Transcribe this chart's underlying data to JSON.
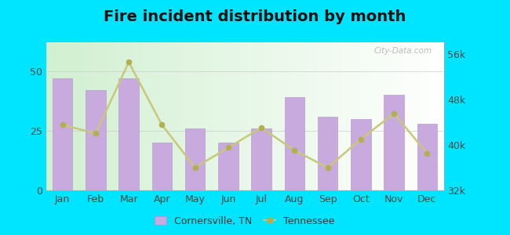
{
  "title": "Fire incident distribution by month",
  "months": [
    "Jan",
    "Feb",
    "Mar",
    "Apr",
    "May",
    "Jun",
    "Jul",
    "Aug",
    "Sep",
    "Oct",
    "Nov",
    "Dec"
  ],
  "bar_values": [
    47,
    42,
    47,
    20,
    26,
    20,
    26,
    39,
    31,
    30,
    40,
    28
  ],
  "line_values": [
    43500,
    42000,
    54500,
    43500,
    36000,
    39500,
    43000,
    39000,
    36000,
    41000,
    45500,
    38500
  ],
  "bar_color": "#c8aade",
  "bar_edge_color": "#b090cc",
  "line_color": "#c8c87a",
  "line_marker_color": "#b0b050",
  "ylim_left": [
    0,
    62
  ],
  "ylim_right": [
    32000,
    58000
  ],
  "yticks_left": [
    0,
    25,
    50
  ],
  "yticks_right": [
    32000,
    40000,
    48000,
    56000
  ],
  "ytick_labels_right": [
    "32k",
    "40k",
    "48k",
    "56k"
  ],
  "outer_bg": "#00e5ff",
  "plot_bg_color": "#e8f5e0",
  "title_fontsize": 14,
  "axis_fontsize": 9,
  "legend_label_bar": "Cornersville, TN",
  "legend_label_line": "Tennessee",
  "watermark": "City-Data.com"
}
